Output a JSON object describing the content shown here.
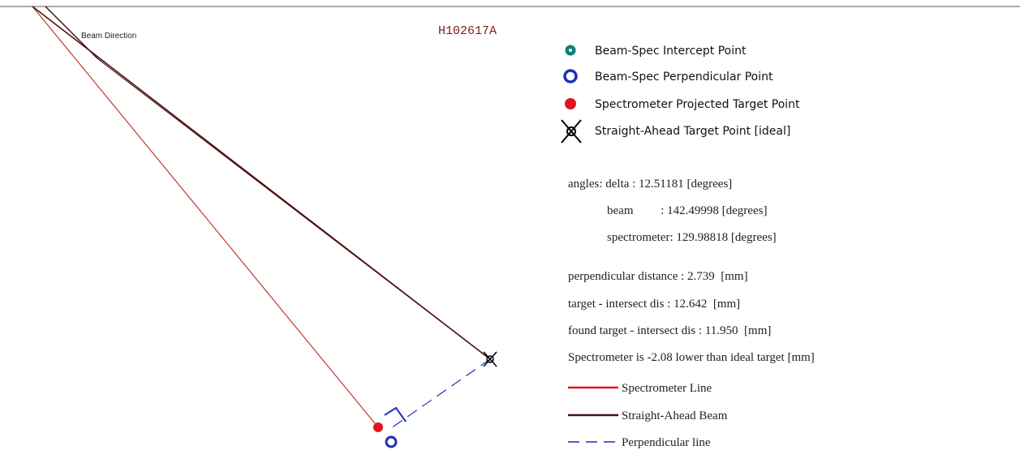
{
  "header": {
    "title": "H102617A"
  },
  "diagram": {
    "beam_direction_label": "Beam Direction"
  },
  "point_legend": [
    {
      "label": "Beam-Spec Intercept Point"
    },
    {
      "label": "Beam-Spec Perpendicular Point"
    },
    {
      "label": "Spectrometer Projected Target Point"
    },
    {
      "label": "Straight-Ahead Target Point [ideal]"
    }
  ],
  "info": [
    "angles: delta : 12.51181 [degrees]",
    "beam         : 142.49998 [degrees]",
    "spectrometer: 129.98818 [degrees]",
    "perpendicular distance : 2.739  [mm]",
    "target - intersect dis : 12.642  [mm]",
    "found target - intersect dis : 11.950  [mm]",
    "Spectrometer is -2.08 lower than ideal target [mm]"
  ],
  "line_legend": [
    {
      "label": "Spectrometer Line"
    },
    {
      "label": "Straight-Ahead Beam"
    },
    {
      "label": "Perpendicular line"
    }
  ]
}
